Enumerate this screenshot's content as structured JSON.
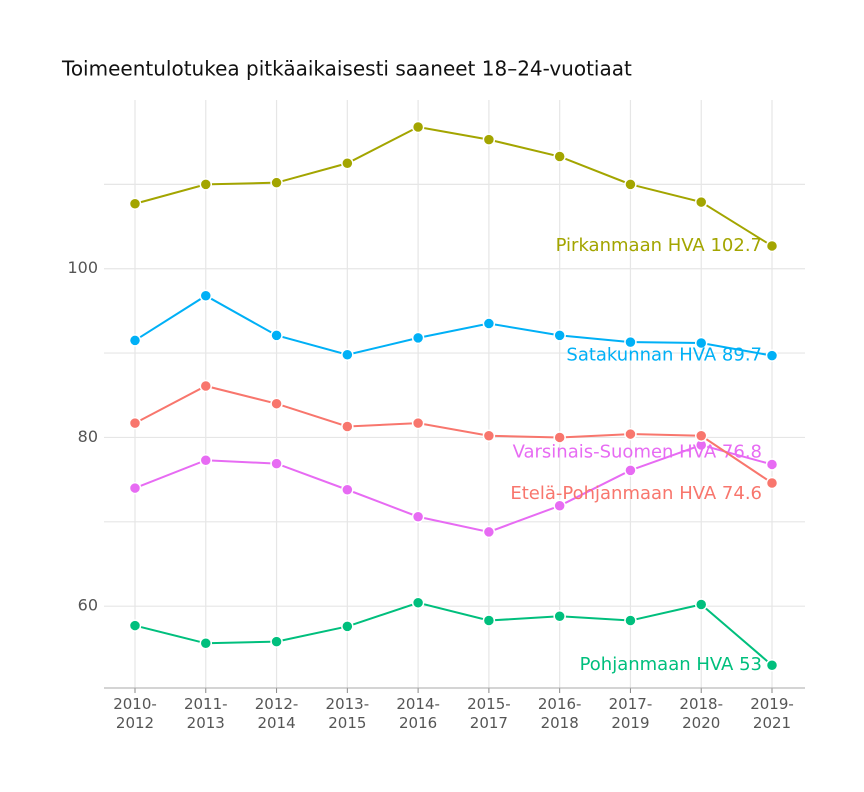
{
  "chart_data": {
    "type": "line",
    "title": "Toimeentulotukea pitkäaikaisesti saaneet 18–24-vuotiaat",
    "categories": [
      "2010-2012",
      "2011-2013",
      "2012-2014",
      "2013-2015",
      "2014-2016",
      "2015-2017",
      "2016-2018",
      "2017-2019",
      "2018-2020",
      "2019-2021"
    ],
    "series": [
      {
        "name": "Pirkanmaan HVA",
        "color": "#a3a500",
        "label": "Pirkanmaan HVA 102.7",
        "values": [
          107.7,
          110.0,
          110.2,
          112.5,
          116.8,
          115.3,
          113.3,
          110.0,
          107.9,
          102.7
        ]
      },
      {
        "name": "Satakunnan HVA",
        "color": "#00b0f6",
        "label": "Satakunnan HVA 89.7",
        "values": [
          91.5,
          96.8,
          92.1,
          89.8,
          91.8,
          93.5,
          92.1,
          91.3,
          91.2,
          89.7
        ]
      },
      {
        "name": "Varsinais-Suomen HVA",
        "color": "#e76bf3",
        "label": "Varsinais-Suomen HVA 76.8",
        "values": [
          74.0,
          77.3,
          76.9,
          73.8,
          70.6,
          68.8,
          71.9,
          76.1,
          79.1,
          76.8
        ]
      },
      {
        "name": "Etelä-Pohjanmaan HVA",
        "color": "#f8766d",
        "label": "Etelä-Pohjanmaan HVA 74.6",
        "values": [
          81.7,
          86.1,
          84.0,
          81.3,
          81.7,
          80.2,
          80.0,
          80.4,
          80.2,
          74.6
        ]
      },
      {
        "name": "Pohjanmaan HVA",
        "color": "#00bf7d",
        "label": "Pohjanmaan HVA 53",
        "values": [
          57.7,
          55.6,
          55.8,
          57.6,
          60.4,
          58.3,
          58.8,
          58.3,
          60.2,
          53
        ]
      }
    ],
    "ylim": [
      50.3,
      120
    ],
    "yticks": [
      60,
      80,
      100
    ],
    "minor_yticks": [
      70,
      90,
      110
    ],
    "grid": true
  }
}
